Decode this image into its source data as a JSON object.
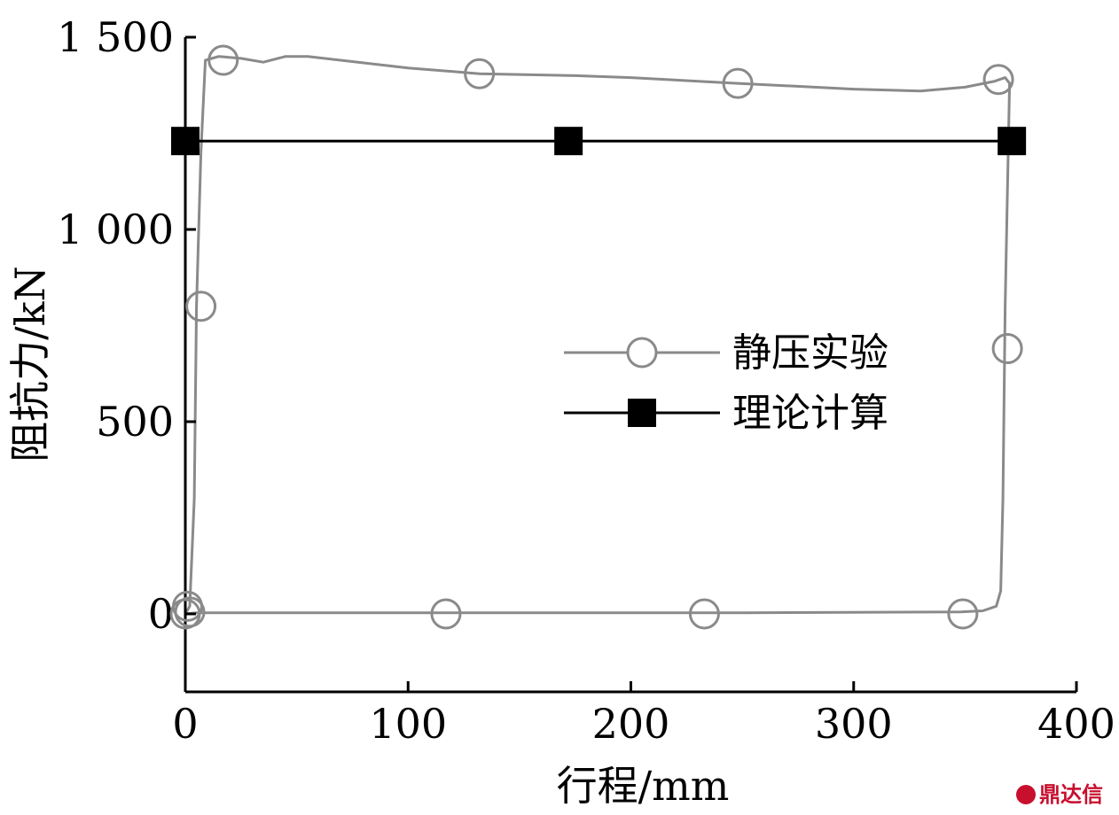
{
  "chart_data": {
    "type": "line",
    "xlabel": "行程/mm",
    "ylabel": "阻抗力/kN",
    "xlim": [
      0,
      400
    ],
    "ylim": [
      -200,
      1500
    ],
    "x_ticks": [
      {
        "value": 0,
        "label": "0"
      },
      {
        "value": 100,
        "label": "100"
      },
      {
        "value": 200,
        "label": "200"
      },
      {
        "value": 300,
        "label": "300"
      },
      {
        "value": 400,
        "label": "400"
      }
    ],
    "y_ticks": [
      {
        "value": 0,
        "label": "0"
      },
      {
        "value": 500,
        "label": "500"
      },
      {
        "value": 1000,
        "label": "1 000"
      },
      {
        "value": 1500,
        "label": "1 500"
      }
    ],
    "legend_position": "center-right",
    "series": [
      {
        "name": "静压实验",
        "color": "#8a8a8a",
        "marker": "open-circle",
        "line": [
          [
            0,
            0
          ],
          [
            2,
            20
          ],
          [
            4,
            300
          ],
          [
            5,
            800
          ],
          [
            7,
            1200
          ],
          [
            9,
            1440
          ],
          [
            15,
            1450
          ],
          [
            25,
            1445
          ],
          [
            35,
            1435
          ],
          [
            45,
            1450
          ],
          [
            55,
            1450
          ],
          [
            100,
            1420
          ],
          [
            132,
            1405
          ],
          [
            175,
            1400
          ],
          [
            200,
            1395
          ],
          [
            248,
            1380
          ],
          [
            300,
            1365
          ],
          [
            330,
            1360
          ],
          [
            350,
            1370
          ],
          [
            363,
            1385
          ],
          [
            368,
            1395
          ],
          [
            370,
            1380
          ],
          [
            368,
            800
          ],
          [
            367,
            300
          ],
          [
            366,
            60
          ],
          [
            364,
            20
          ],
          [
            358,
            8
          ],
          [
            348,
            5
          ],
          [
            250,
            3
          ],
          [
            150,
            3
          ],
          [
            50,
            3
          ],
          [
            5,
            3
          ],
          [
            0,
            0
          ]
        ],
        "markers": [
          [
            0,
            0
          ],
          [
            1,
            20
          ],
          [
            2,
            5
          ],
          [
            7,
            800
          ],
          [
            17,
            1440
          ],
          [
            132,
            1405
          ],
          [
            248,
            1380
          ],
          [
            365,
            1390
          ],
          [
            369,
            690
          ],
          [
            349,
            0
          ],
          [
            233,
            0
          ],
          [
            117,
            0
          ]
        ]
      },
      {
        "name": "理论计算",
        "color": "#000000",
        "marker": "filled-square",
        "line": [
          [
            0,
            1230
          ],
          [
            172,
            1230
          ],
          [
            371,
            1230
          ]
        ],
        "markers": [
          [
            0,
            1230
          ],
          [
            172,
            1230
          ],
          [
            371,
            1230
          ]
        ]
      }
    ]
  },
  "watermark": {
    "text": "鼎达信"
  }
}
